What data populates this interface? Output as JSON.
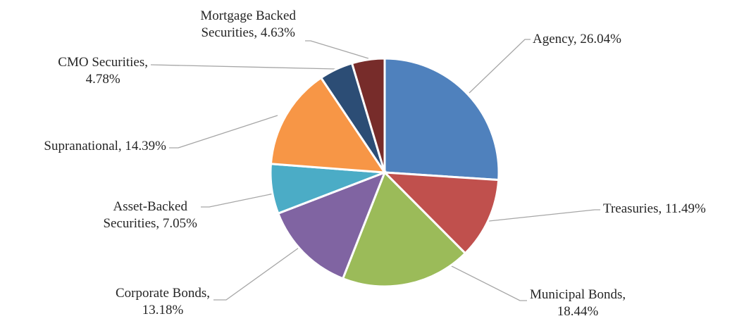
{
  "chart_data": {
    "type": "pie",
    "title": "",
    "start_angle_deg": 0,
    "direction": "clockwise",
    "slices": [
      {
        "label": "Agency",
        "value": 26.04,
        "display": "26.04%",
        "color": "#4f81bd",
        "label_lines": [
          "Agency, 26.04%"
        ]
      },
      {
        "label": "Treasuries",
        "value": 11.49,
        "display": "11.49%",
        "color": "#c0504d",
        "label_lines": [
          "Treasuries, 11.49%"
        ]
      },
      {
        "label": "Municipal Bonds",
        "value": 18.44,
        "display": "18.44%",
        "color": "#9bbb59",
        "label_lines": [
          "Municipal Bonds,",
          "18.44%"
        ]
      },
      {
        "label": "Corporate Bonds",
        "value": 13.18,
        "display": "13.18%",
        "color": "#8064a2",
        "label_lines": [
          "Corporate Bonds,",
          "13.18%"
        ]
      },
      {
        "label": "Asset-Backed Securities",
        "value": 7.05,
        "display": "7.05%",
        "color": "#4bacc6",
        "label_lines": [
          "Asset-Backed",
          "Securities, 7.05%"
        ]
      },
      {
        "label": "Supranational",
        "value": 14.39,
        "display": "14.39%",
        "color": "#f79646",
        "label_lines": [
          "Supranational, 14.39%"
        ]
      },
      {
        "label": "CMO Securities",
        "value": 4.78,
        "display": "4.78%",
        "color": "#2c4d75",
        "label_lines": [
          "CMO Securities,",
          "4.78%"
        ]
      },
      {
        "label": "Mortgage Backed Securities",
        "value": 4.63,
        "display": "4.63%",
        "color": "#772c2a",
        "label_lines": [
          "Mortgage Backed",
          "Securities, 4.63%"
        ]
      }
    ]
  }
}
